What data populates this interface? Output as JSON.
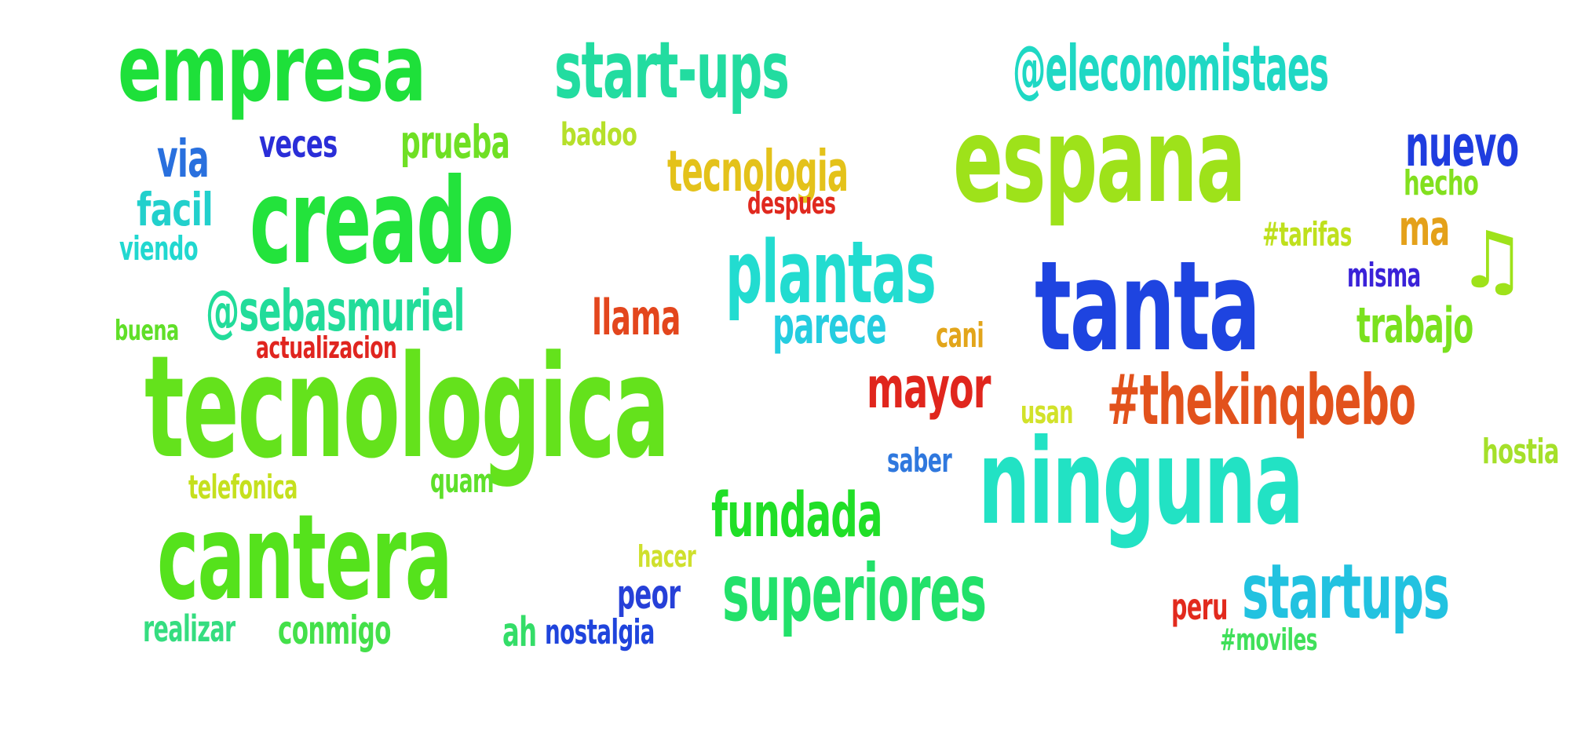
{
  "words": [
    {
      "text": "empresa",
      "color": "#1ee03a"
    },
    {
      "text": "start-ups",
      "color": "#22dca0"
    },
    {
      "text": "@eleconomistaes",
      "color": "#1fd8c4"
    },
    {
      "text": "espana",
      "color": "#9ee21a"
    },
    {
      "text": "nuevo",
      "color": "#1f3ddf"
    },
    {
      "text": "via",
      "color": "#2970de"
    },
    {
      "text": "veces",
      "color": "#2a2ed8"
    },
    {
      "text": "prueba",
      "color": "#6fe024"
    },
    {
      "text": "badoo",
      "color": "#b6e02a"
    },
    {
      "text": "tecnologia",
      "color": "#e4c21a"
    },
    {
      "text": "hecho",
      "color": "#82e01e"
    },
    {
      "text": "creado",
      "color": "#23e33c"
    },
    {
      "text": "facil",
      "color": "#22d0cc"
    },
    {
      "text": "despues",
      "color": "#e0291f"
    },
    {
      "text": "viendo",
      "color": "#21d8d0"
    },
    {
      "text": "plantas",
      "color": "#22dcd0"
    },
    {
      "text": "#tarifas",
      "color": "#bfe01d"
    },
    {
      "text": "ma",
      "color": "#e4a11a"
    },
    {
      "text": "tanta",
      "color": "#1e44e0"
    },
    {
      "text": "misma",
      "color": "#3a22d8"
    },
    {
      "text": "♫",
      "color": "#9ee21a"
    },
    {
      "text": "@sebasmuriel",
      "color": "#22dc9a"
    },
    {
      "text": "llama",
      "color": "#e3461d"
    },
    {
      "text": "buena",
      "color": "#60df28"
    },
    {
      "text": "parece",
      "color": "#25cde0"
    },
    {
      "text": "cani",
      "color": "#e2a51a"
    },
    {
      "text": "trabajo",
      "color": "#7ae11e"
    },
    {
      "text": "actualizacion",
      "color": "#e0251f"
    },
    {
      "text": "tecnologica",
      "color": "#64e21c"
    },
    {
      "text": "mayor",
      "color": "#e0261d"
    },
    {
      "text": "#thekinqbebo",
      "color": "#e2521c"
    },
    {
      "text": "usan",
      "color": "#d2e22a"
    },
    {
      "text": "hostia",
      "color": "#a5e02a"
    },
    {
      "text": "saber",
      "color": "#2f78de"
    },
    {
      "text": "ninguna",
      "color": "#22e2c4"
    },
    {
      "text": "telefonica",
      "color": "#c5e01e"
    },
    {
      "text": "quam",
      "color": "#5ee02a"
    },
    {
      "text": "fundada",
      "color": "#20df27"
    },
    {
      "text": "cantera",
      "color": "#55e21c"
    },
    {
      "text": "hacer",
      "color": "#cfe02e"
    },
    {
      "text": "superiores",
      "color": "#22e16a"
    },
    {
      "text": "startups",
      "color": "#22c2e0"
    },
    {
      "text": "peor",
      "color": "#2640d8"
    },
    {
      "text": "peru",
      "color": "#e22a1d"
    },
    {
      "text": "realizar",
      "color": "#35dd80"
    },
    {
      "text": "conmigo",
      "color": "#44e04a"
    },
    {
      "text": "ah",
      "color": "#34dd68"
    },
    {
      "text": "nostalgia",
      "color": "#1f44dc"
    },
    {
      "text": "#moviles",
      "color": "#40e05a"
    }
  ]
}
